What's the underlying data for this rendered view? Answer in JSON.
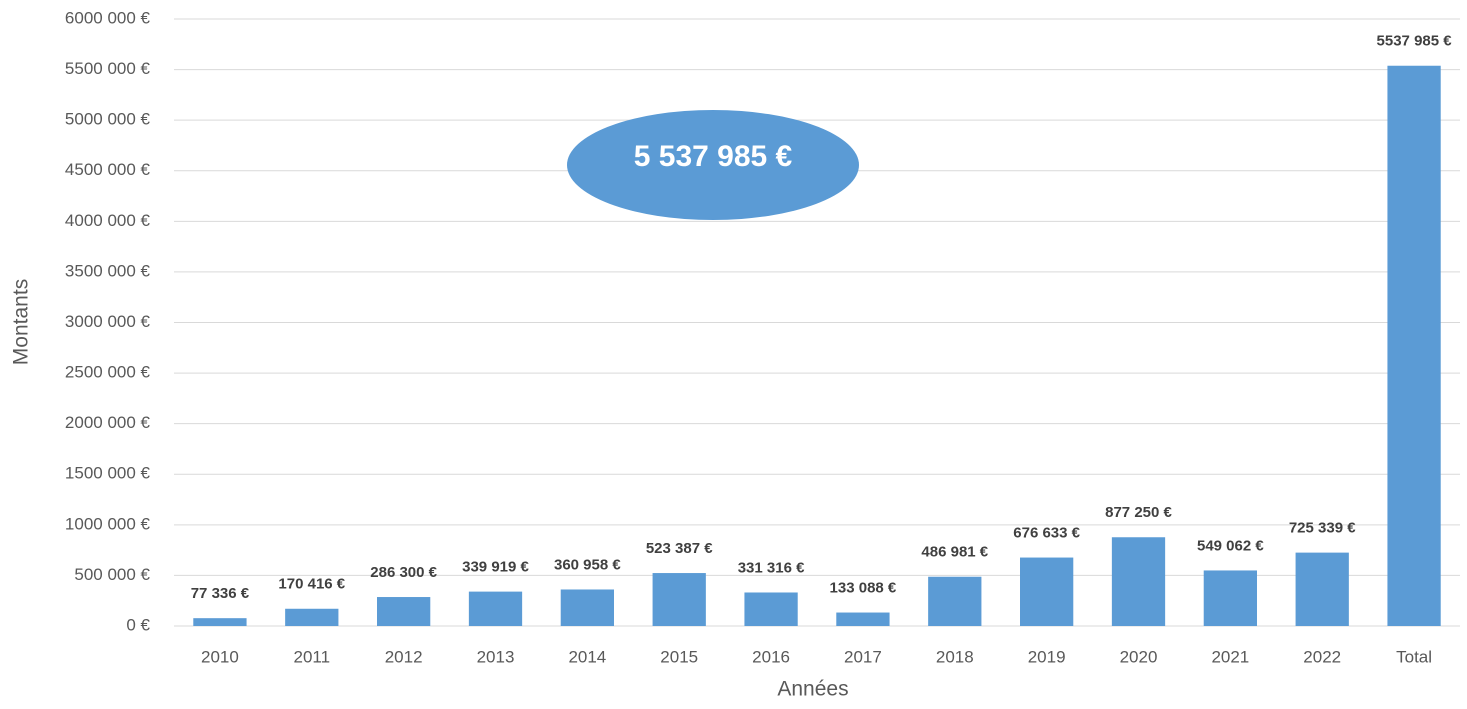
{
  "chart_data": {
    "type": "bar",
    "categories": [
      "2010",
      "2011",
      "2012",
      "2013",
      "2014",
      "2015",
      "2016",
      "2017",
      "2018",
      "2019",
      "2020",
      "2021",
      "2022",
      "Total"
    ],
    "values": [
      77336,
      170416,
      286300,
      339919,
      360958,
      523387,
      331316,
      133088,
      486981,
      676633,
      877250,
      549062,
      725339,
      5537985
    ],
    "value_labels": [
      "77 336 €",
      "170 416 €",
      "286 300 €",
      "339 919 €",
      "360 958 €",
      "523 387 €",
      "331 316 €",
      "133 088 €",
      "486 981 €",
      "676 633 €",
      "877 250 €",
      "549 062 €",
      "725 339 €",
      "5537 985 €"
    ],
    "color": "#5b9bd5",
    "xlabel": "Années",
    "ylabel": "Montants",
    "annotation": "5 537 985 €",
    "ylim": [
      0,
      6000000
    ],
    "yticks": [
      {
        "value": 0,
        "label": "0 €"
      },
      {
        "value": 500000,
        "label": "500 000 €"
      },
      {
        "value": 1000000,
        "label": "1000 000 €"
      },
      {
        "value": 1500000,
        "label": "1500 000 €"
      },
      {
        "value": 2000000,
        "label": "2000 000 €"
      },
      {
        "value": 2500000,
        "label": "2500 000 €"
      },
      {
        "value": 3000000,
        "label": "3000 000 €"
      },
      {
        "value": 3500000,
        "label": "3500 000 €"
      },
      {
        "value": 4000000,
        "label": "4000 000 €"
      },
      {
        "value": 4500000,
        "label": "4500 000 €"
      },
      {
        "value": 5000000,
        "label": "5000 000 €"
      },
      {
        "value": 5500000,
        "label": "5500 000 €"
      },
      {
        "value": 6000000,
        "label": "6000 000 €"
      }
    ],
    "grid": true
  }
}
